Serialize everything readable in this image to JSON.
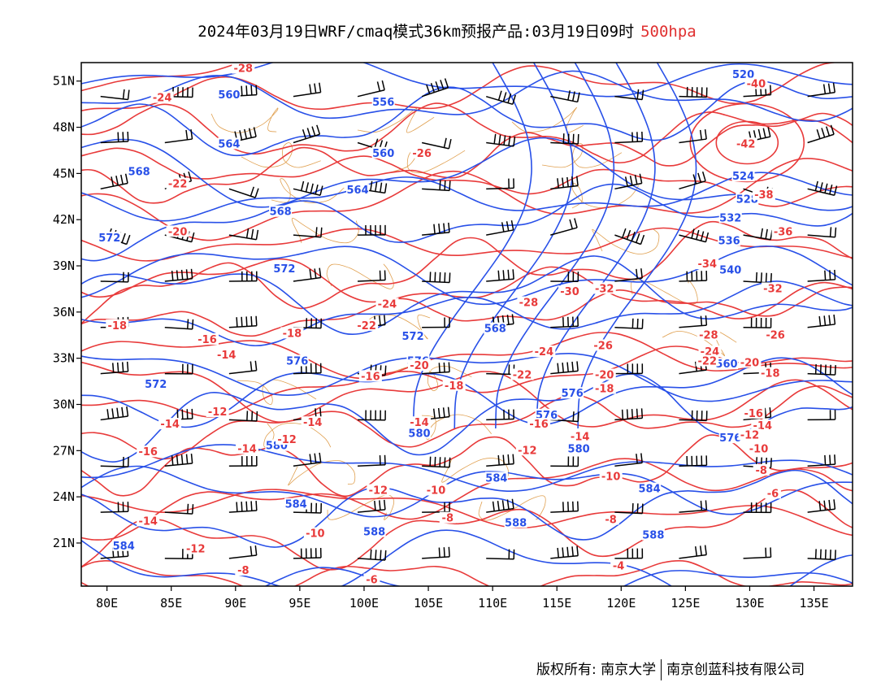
{
  "title": {
    "main": "2024年03月19日WRF/cmaq模式36km预报产品:03月19日09时",
    "level": "500hpa"
  },
  "colors": {
    "height": "#2850e8",
    "temperature": "#e83a3a",
    "border": "#e0a050",
    "barb": "#000000"
  },
  "axes": {
    "lat_labels": [
      "51N",
      "48N",
      "45N",
      "42N",
      "39N",
      "36N",
      "33N",
      "30N",
      "27N",
      "24N",
      "21N"
    ],
    "lon_labels": [
      "80E",
      "85E",
      "90E",
      "95E",
      "100E",
      "105E",
      "110E",
      "115E",
      "120E",
      "125E",
      "130E",
      "135E"
    ]
  },
  "height_labels": [
    {
      "t": "520",
      "lon": 129.5,
      "lat": 51.4
    },
    {
      "t": "560",
      "lon": 89.5,
      "lat": 50.1
    },
    {
      "t": "556",
      "lon": 101.5,
      "lat": 49.6
    },
    {
      "t": "564",
      "lon": 89.5,
      "lat": 46.9
    },
    {
      "t": "560",
      "lon": 101.5,
      "lat": 46.3
    },
    {
      "t": "568",
      "lon": 82.5,
      "lat": 45.1
    },
    {
      "t": "564",
      "lon": 99.5,
      "lat": 43.9
    },
    {
      "t": "524",
      "lon": 129.5,
      "lat": 44.8
    },
    {
      "t": "528",
      "lon": 129.8,
      "lat": 43.3
    },
    {
      "t": "568",
      "lon": 93.5,
      "lat": 42.5
    },
    {
      "t": "532",
      "lon": 128.5,
      "lat": 42.1
    },
    {
      "t": "572",
      "lon": 80.2,
      "lat": 40.8
    },
    {
      "t": "536",
      "lon": 128.4,
      "lat": 40.6
    },
    {
      "t": "572",
      "lon": 93.8,
      "lat": 38.8
    },
    {
      "t": "540",
      "lon": 128.5,
      "lat": 38.7
    },
    {
      "t": "572",
      "lon": 103.8,
      "lat": 34.4
    },
    {
      "t": "568",
      "lon": 110.2,
      "lat": 34.9
    },
    {
      "t": "576",
      "lon": 94.8,
      "lat": 32.8
    },
    {
      "t": "576",
      "lon": 104.2,
      "lat": 32.8
    },
    {
      "t": "560",
      "lon": 128.2,
      "lat": 32.6
    },
    {
      "t": "572",
      "lon": 83.8,
      "lat": 31.3
    },
    {
      "t": "576",
      "lon": 116.2,
      "lat": 30.7
    },
    {
      "t": "576",
      "lon": 114.2,
      "lat": 29.3
    },
    {
      "t": "576",
      "lon": 128.5,
      "lat": 27.8
    },
    {
      "t": "580",
      "lon": 104.3,
      "lat": 28.1
    },
    {
      "t": "580",
      "lon": 93.2,
      "lat": 27.3
    },
    {
      "t": "580",
      "lon": 116.7,
      "lat": 27.1
    },
    {
      "t": "584",
      "lon": 110.3,
      "lat": 25.2
    },
    {
      "t": "584",
      "lon": 122.2,
      "lat": 24.5
    },
    {
      "t": "584",
      "lon": 94.7,
      "lat": 23.5
    },
    {
      "t": "588",
      "lon": 100.8,
      "lat": 21.7
    },
    {
      "t": "588",
      "lon": 111.8,
      "lat": 22.3
    },
    {
      "t": "588",
      "lon": 122.5,
      "lat": 21.5
    },
    {
      "t": "584",
      "lon": 81.3,
      "lat": 20.8
    }
  ],
  "temperature_labels": [
    {
      "t": "-28",
      "lon": 90.6,
      "lat": 51.8
    },
    {
      "t": "-40",
      "lon": 130.5,
      "lat": 50.8
    },
    {
      "t": "-24",
      "lon": 84.3,
      "lat": 49.9
    },
    {
      "t": "-26",
      "lon": 104.5,
      "lat": 46.3
    },
    {
      "t": "-42",
      "lon": 129.7,
      "lat": 46.9
    },
    {
      "t": "-22",
      "lon": 85.5,
      "lat": 44.3
    },
    {
      "t": "-38",
      "lon": 131.1,
      "lat": 43.6
    },
    {
      "t": "-36",
      "lon": 132.6,
      "lat": 41.2
    },
    {
      "t": "-20",
      "lon": 85.5,
      "lat": 41.2
    },
    {
      "t": "-34",
      "lon": 126.7,
      "lat": 39.1
    },
    {
      "t": "-32",
      "lon": 131.8,
      "lat": 37.5
    },
    {
      "t": "-32",
      "lon": 118.7,
      "lat": 37.5
    },
    {
      "t": "-30",
      "lon": 116.0,
      "lat": 37.3
    },
    {
      "t": "-28",
      "lon": 112.8,
      "lat": 36.6
    },
    {
      "t": "-24",
      "lon": 101.8,
      "lat": 36.5
    },
    {
      "t": "-22",
      "lon": 100.2,
      "lat": 35.1
    },
    {
      "t": "-28",
      "lon": 126.8,
      "lat": 34.5
    },
    {
      "t": "-26",
      "lon": 132.0,
      "lat": 34.5
    },
    {
      "t": "-18",
      "lon": 80.8,
      "lat": 35.1
    },
    {
      "t": "-18",
      "lon": 94.4,
      "lat": 34.6
    },
    {
      "t": "-16",
      "lon": 87.8,
      "lat": 34.2
    },
    {
      "t": "-14",
      "lon": 89.3,
      "lat": 33.2
    },
    {
      "t": "-20",
      "lon": 104.3,
      "lat": 32.5
    },
    {
      "t": "-24",
      "lon": 114.0,
      "lat": 33.4
    },
    {
      "t": "-26",
      "lon": 118.6,
      "lat": 33.8
    },
    {
      "t": "-24",
      "lon": 126.9,
      "lat": 33.4
    },
    {
      "t": "-22",
      "lon": 126.7,
      "lat": 32.8
    },
    {
      "t": "-20",
      "lon": 130.0,
      "lat": 32.7
    },
    {
      "t": "-18",
      "lon": 131.6,
      "lat": 32.0
    },
    {
      "t": "-22",
      "lon": 112.3,
      "lat": 31.9
    },
    {
      "t": "-20",
      "lon": 118.7,
      "lat": 31.9
    },
    {
      "t": "-18",
      "lon": 118.7,
      "lat": 31.0
    },
    {
      "t": "-16",
      "lon": 100.5,
      "lat": 31.8
    },
    {
      "t": "-18",
      "lon": 107.0,
      "lat": 31.2
    },
    {
      "t": "-12",
      "lon": 88.6,
      "lat": 29.5
    },
    {
      "t": "-14",
      "lon": 84.9,
      "lat": 28.7
    },
    {
      "t": "-16",
      "lon": 130.3,
      "lat": 29.4
    },
    {
      "t": "-14",
      "lon": 131.0,
      "lat": 28.6
    },
    {
      "t": "-12",
      "lon": 130.0,
      "lat": 28.0
    },
    {
      "t": "-10",
      "lon": 130.7,
      "lat": 27.1
    },
    {
      "t": "-14",
      "lon": 96.0,
      "lat": 28.8
    },
    {
      "t": "-14",
      "lon": 104.3,
      "lat": 28.8
    },
    {
      "t": "-16",
      "lon": 113.6,
      "lat": 28.7
    },
    {
      "t": "-14",
      "lon": 116.8,
      "lat": 27.9
    },
    {
      "t": "-12",
      "lon": 94.0,
      "lat": 27.7
    },
    {
      "t": "-14",
      "lon": 90.9,
      "lat": 27.1
    },
    {
      "t": "-12",
      "lon": 112.7,
      "lat": 27.0
    },
    {
      "t": "-16",
      "lon": 83.2,
      "lat": 26.9
    },
    {
      "t": "-10",
      "lon": 119.2,
      "lat": 25.3
    },
    {
      "t": "-8",
      "lon": 130.9,
      "lat": 25.7
    },
    {
      "t": "-6",
      "lon": 131.8,
      "lat": 24.2
    },
    {
      "t": "-12",
      "lon": 101.1,
      "lat": 24.4
    },
    {
      "t": "-10",
      "lon": 105.6,
      "lat": 24.4
    },
    {
      "t": "-8",
      "lon": 119.2,
      "lat": 22.5
    },
    {
      "t": "-8",
      "lon": 106.5,
      "lat": 22.6
    },
    {
      "t": "-10",
      "lon": 96.2,
      "lat": 21.6
    },
    {
      "t": "-14",
      "lon": 83.2,
      "lat": 22.4
    },
    {
      "t": "-12",
      "lon": 86.9,
      "lat": 20.6
    },
    {
      "t": "-8",
      "lon": 90.6,
      "lat": 19.2
    },
    {
      "t": "-6",
      "lon": 100.6,
      "lat": 18.6
    },
    {
      "t": "-4",
      "lon": 119.8,
      "lat": 19.5
    }
  ],
  "footer": {
    "copyright": "版权所有: 南京大学",
    "company": "南京创蓝科技有限公司"
  }
}
